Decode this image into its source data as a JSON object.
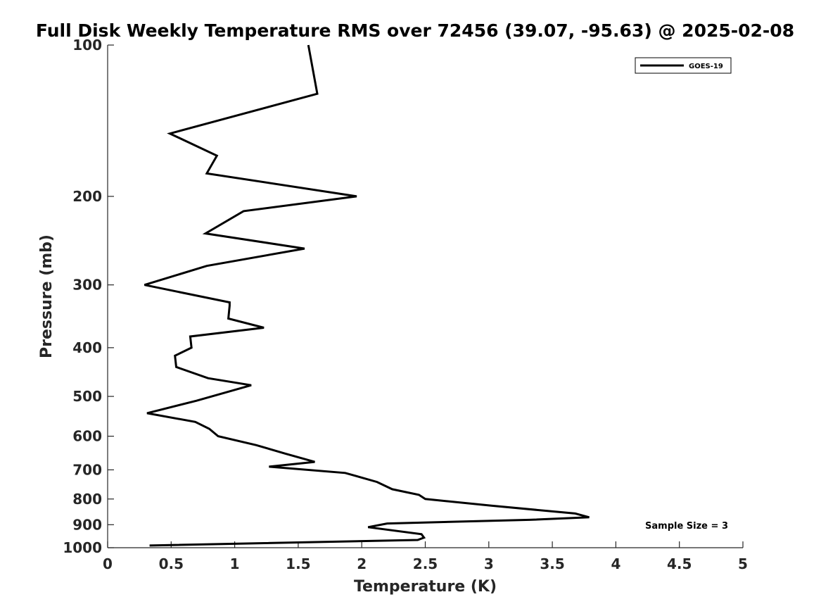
{
  "chart_data": {
    "type": "line",
    "title": "Full Disk Weekly Temperature RMS over 72456 (39.07, -95.63) @ 2025-02-08",
    "xlabel": "Temperature (K)",
    "ylabel": "Pressure (mb)",
    "xlim": [
      0,
      5
    ],
    "ylim": [
      100,
      1000
    ],
    "y_scale": "log",
    "y_reversed": true,
    "grid": false,
    "legend_position": "top-right",
    "x_ticks": [
      0,
      0.5,
      1,
      1.5,
      2,
      2.5,
      3,
      3.5,
      4,
      4.5,
      5
    ],
    "x_tick_labels": [
      "0",
      "0.5",
      "1",
      "1.5",
      "2",
      "2.5",
      "3",
      "3.5",
      "4",
      "4.5",
      "5"
    ],
    "y_ticks": [
      100,
      200,
      300,
      400,
      500,
      600,
      700,
      800,
      900,
      1000
    ],
    "y_tick_labels": [
      "100",
      "200",
      "300",
      "400",
      "500",
      "600",
      "700",
      "800",
      "900",
      "1000"
    ],
    "annotation": "Sample Size = 3",
    "series": [
      {
        "name": "GOES-19",
        "color": "#000000",
        "x": [
          1.58,
          1.65,
          0.49,
          0.86,
          0.78,
          1.96,
          1.07,
          0.77,
          1.55,
          0.78,
          0.29,
          0.96,
          0.96,
          0.95,
          1.23,
          0.65,
          0.66,
          0.53,
          0.54,
          0.79,
          1.13,
          0.7,
          0.31,
          0.69,
          0.8,
          0.87,
          1.17,
          1.4,
          1.63,
          1.27,
          1.87,
          2.12,
          2.24,
          2.45,
          2.5,
          3.02,
          3.68,
          3.79,
          3.32,
          2.2,
          2.05,
          2.47,
          2.49,
          2.44,
          0.33
        ],
        "y": [
          100,
          125,
          150,
          166,
          180,
          200,
          214,
          237,
          254,
          275,
          300,
          325,
          330,
          350,
          365,
          380,
          400,
          415,
          437,
          460,
          475,
          510,
          540,
          562,
          580,
          600,
          625,
          650,
          675,
          690,
          710,
          740,
          765,
          785,
          800,
          825,
          855,
          870,
          880,
          895,
          910,
          940,
          955,
          965,
          990
        ]
      }
    ]
  }
}
